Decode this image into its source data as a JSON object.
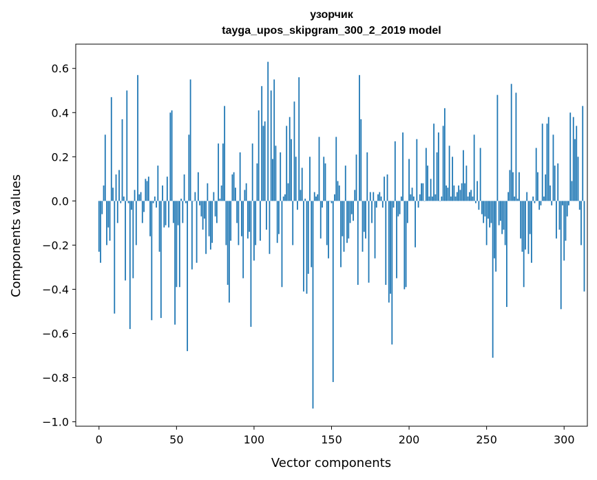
{
  "chart_data": {
    "type": "bar",
    "title_line1": "узорчик",
    "title_line2": "tayga_upos_skipgram_300_2_2019 model",
    "xlabel": "Vector components",
    "ylabel": "Components values",
    "xlim": [
      -15,
      315
    ],
    "ylim": [
      -1.02,
      0.71
    ],
    "xticks": [
      0,
      50,
      100,
      150,
      200,
      250,
      300
    ],
    "xtick_labels": [
      "0",
      "50",
      "100",
      "150",
      "200",
      "250",
      "300"
    ],
    "yticks": [
      -1.0,
      -0.8,
      -0.6,
      -0.4,
      -0.2,
      0.0,
      0.2,
      0.4,
      0.6
    ],
    "ytick_labels": [
      "−1.0",
      "−0.8",
      "−0.6",
      "−0.4",
      "−0.2",
      "0.0",
      "0.2",
      "0.4",
      "0.6"
    ],
    "bar_color": "#1f77b4",
    "values": [
      -0.23,
      -0.28,
      -0.06,
      0.07,
      0.3,
      -0.2,
      -0.12,
      -0.18,
      0.47,
      0.06,
      -0.51,
      0.12,
      -0.1,
      0.14,
      -0.01,
      0.37,
      0.02,
      -0.36,
      0.5,
      -0.01,
      -0.58,
      -0.04,
      -0.35,
      0.05,
      -0.2,
      0.57,
      0.03,
      0.04,
      -0.1,
      -0.05,
      0.1,
      0.09,
      0.11,
      -0.16,
      -0.54,
      -0.01,
      0.02,
      -0.03,
      0.16,
      -0.23,
      -0.53,
      0.07,
      -0.12,
      -0.11,
      0.11,
      -0.12,
      0.4,
      0.41,
      -0.1,
      -0.56,
      -0.39,
      -0.11,
      -0.39,
      0.01,
      -0.1,
      0.12,
      -0.01,
      -0.68,
      0.3,
      0.55,
      -0.31,
      0.0,
      0.04,
      -0.28,
      0.13,
      -0.02,
      -0.07,
      -0.13,
      -0.08,
      -0.24,
      0.08,
      -0.16,
      -0.22,
      -0.19,
      0.04,
      -0.07,
      -0.1,
      0.26,
      0.01,
      0.07,
      0.26,
      0.43,
      -0.2,
      -0.38,
      -0.46,
      -0.18,
      0.12,
      0.13,
      0.06,
      -0.1,
      -0.2,
      0.22,
      -0.16,
      -0.35,
      0.05,
      0.08,
      -0.17,
      -0.14,
      -0.57,
      0.26,
      -0.27,
      -0.2,
      0.17,
      0.41,
      -0.18,
      0.52,
      0.34,
      0.36,
      -0.13,
      0.63,
      -0.24,
      0.5,
      0.19,
      0.55,
      0.25,
      -0.19,
      -0.15,
      0.22,
      -0.39,
      0.02,
      0.03,
      0.34,
      0.08,
      0.38,
      0.28,
      -0.2,
      0.45,
      0.2,
      -0.04,
      0.56,
      0.05,
      0.15,
      -0.41,
      0.01,
      -0.42,
      -0.33,
      0.2,
      -0.3,
      -0.94,
      0.04,
      0.02,
      0.03,
      0.29,
      -0.17,
      -0.03,
      0.2,
      0.17,
      -0.2,
      -0.26,
      0.0,
      -0.01,
      -0.82,
      0.03,
      0.29,
      0.09,
      0.07,
      -0.3,
      -0.16,
      -0.23,
      0.16,
      -0.19,
      -0.17,
      -0.1,
      -0.06,
      -0.09,
      0.05,
      0.21,
      -0.38,
      0.57,
      0.37,
      -0.23,
      -0.14,
      -0.17,
      0.22,
      -0.37,
      0.04,
      -0.1,
      0.04,
      -0.26,
      -0.03,
      0.03,
      0.04,
      0.02,
      -0.03,
      0.11,
      -0.38,
      0.12,
      -0.46,
      -0.42,
      -0.65,
      -0.03,
      0.27,
      -0.35,
      -0.07,
      -0.06,
      0.02,
      0.31,
      -0.4,
      -0.39,
      -0.1,
      0.19,
      0.03,
      0.06,
      0.02,
      -0.21,
      0.28,
      -0.03,
      0.03,
      0.08,
      0.08,
      0.0,
      0.24,
      0.16,
      0.02,
      0.1,
      0.02,
      0.35,
      0.03,
      0.22,
      0.31,
      0.0,
      0.02,
      0.34,
      0.42,
      0.07,
      0.06,
      0.25,
      0.02,
      0.2,
      0.07,
      0.02,
      0.04,
      0.07,
      0.05,
      0.08,
      0.23,
      0.08,
      0.16,
      0.02,
      0.04,
      0.05,
      0.02,
      0.3,
      -0.01,
      0.09,
      -0.04,
      0.24,
      -0.06,
      -0.1,
      -0.07,
      -0.2,
      -0.08,
      -0.12,
      -0.1,
      -0.71,
      -0.26,
      -0.32,
      0.48,
      -0.11,
      -0.09,
      -0.15,
      -0.13,
      -0.2,
      -0.48,
      0.04,
      0.14,
      0.53,
      0.13,
      0.02,
      0.49,
      0.01,
      0.13,
      -0.17,
      -0.23,
      -0.39,
      -0.22,
      0.04,
      -0.24,
      -0.15,
      -0.28,
      0.02,
      -0.01,
      0.24,
      0.13,
      -0.04,
      -0.02,
      0.35,
      0.02,
      0.12,
      0.35,
      0.38,
      0.07,
      -0.02,
      0.3,
      0.16,
      -0.17,
      0.17,
      -0.13,
      -0.49,
      -0.02,
      -0.27,
      -0.18,
      -0.07,
      -0.02,
      0.4,
      0.09,
      0.38,
      0.28,
      0.34,
      0.2,
      -0.04,
      -0.2,
      0.43,
      -0.41
    ]
  }
}
